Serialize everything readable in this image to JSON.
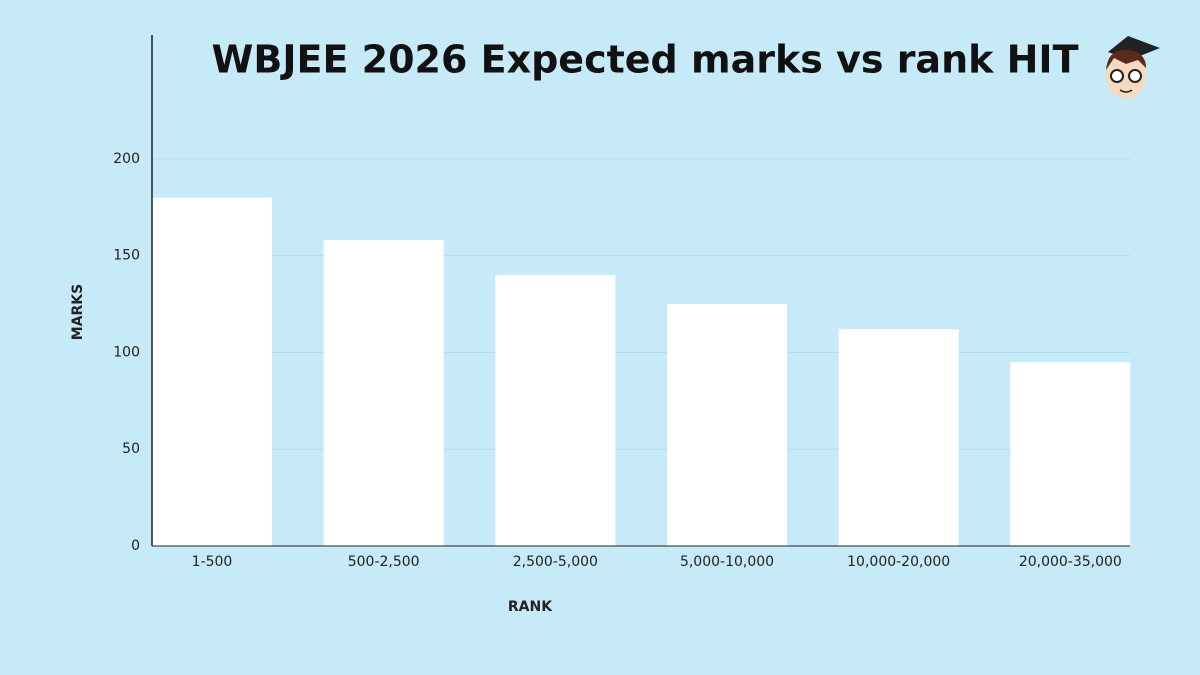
{
  "chart_data": {
    "type": "bar",
    "title": "WBJEE 2026 Expected marks vs rank HIT",
    "x_label": "RANK",
    "y_label": "MARKS",
    "categories": [
      "1-500",
      "500-2,500",
      "2,500-5,000",
      "5,000-10,000",
      "10,000-20,000",
      "20,000-35,000"
    ],
    "values": [
      180,
      158,
      140,
      125,
      112,
      95
    ],
    "color": "#ffffff",
    "ylim": [
      0,
      264
    ],
    "yticks": [
      0,
      50,
      100,
      150,
      200
    ],
    "grid": true
  }
}
